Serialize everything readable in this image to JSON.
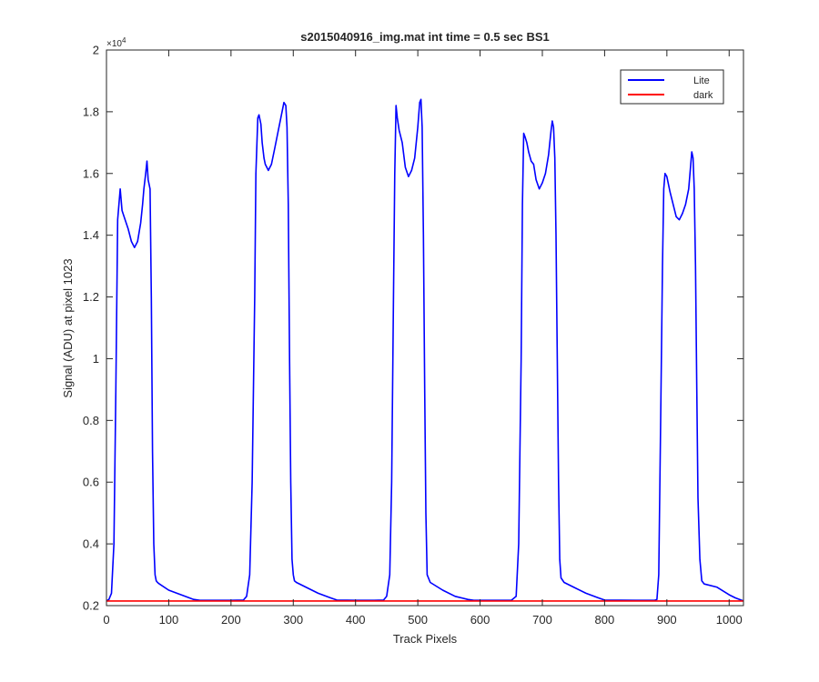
{
  "chart_data": {
    "type": "line",
    "title": "s2015040916_img.mat int time = 0.5 sec   BS1",
    "xlabel": "Track Pixels",
    "ylabel": "Signal (ADU) at pixel 1023",
    "xlim": [
      0,
      1023
    ],
    "ylim": [
      2000,
      20000
    ],
    "y_exponent_label": "×10",
    "y_exponent_power": "4",
    "grid": false,
    "legend_position": "top-right",
    "xticks": [
      0,
      100,
      200,
      300,
      400,
      500,
      600,
      700,
      800,
      900,
      1000
    ],
    "xtick_labels": [
      "0",
      "100",
      "200",
      "300",
      "400",
      "500",
      "600",
      "700",
      "800",
      "900",
      "1000"
    ],
    "yticks": [
      2000,
      4000,
      6000,
      8000,
      10000,
      12000,
      14000,
      16000,
      18000,
      20000
    ],
    "ytick_labels": [
      "0.2",
      "0.4",
      "0.6",
      "0.8",
      "1",
      "1.2",
      "1.4",
      "1.6",
      "1.8",
      "2"
    ],
    "series": [
      {
        "name": "Lite",
        "color": "#0000ff",
        "x": [
          0,
          4,
          8,
          12,
          15,
          18,
          20,
          22,
          25,
          30,
          35,
          40,
          45,
          50,
          55,
          58,
          60,
          63,
          65,
          67,
          70,
          72,
          74,
          76,
          78,
          80,
          82,
          85,
          100,
          120,
          140,
          150,
          180,
          200,
          220,
          225,
          230,
          234,
          238,
          240,
          243,
          245,
          248,
          250,
          253,
          255,
          260,
          265,
          270,
          275,
          280,
          285,
          288,
          290,
          292,
          294,
          296,
          298,
          300,
          302,
          305,
          320,
          340,
          360,
          370,
          400,
          430,
          445,
          450,
          455,
          458,
          461,
          463,
          465,
          467,
          470,
          475,
          480,
          485,
          490,
          495,
          500,
          503,
          505,
          507,
          509,
          511,
          513,
          515,
          520,
          540,
          560,
          580,
          590,
          620,
          650,
          658,
          662,
          666,
          668,
          670,
          672,
          675,
          678,
          682,
          686,
          690,
          695,
          700,
          705,
          710,
          712,
          714,
          716,
          718,
          720,
          722,
          724,
          726,
          728,
          730,
          735,
          750,
          770,
          790,
          800,
          850,
          880,
          884,
          887,
          890,
          893,
          895,
          897,
          900,
          905,
          910,
          915,
          920,
          925,
          930,
          935,
          938,
          940,
          942,
          944,
          946,
          948,
          950,
          953,
          956,
          960,
          980,
          1000,
          1010,
          1023
        ],
        "y": [
          2150,
          2200,
          2400,
          4000,
          9000,
          14500,
          15000,
          15500,
          14800,
          14500,
          14200,
          13800,
          13600,
          13800,
          14400,
          15000,
          15500,
          16000,
          16400,
          15800,
          15500,
          12000,
          7000,
          4000,
          3000,
          2800,
          2750,
          2700,
          2500,
          2350,
          2200,
          2170,
          2170,
          2170,
          2180,
          2300,
          3000,
          6000,
          12000,
          16000,
          17800,
          17900,
          17600,
          17000,
          16500,
          16300,
          16100,
          16300,
          16800,
          17300,
          17800,
          18300,
          18200,
          17500,
          15000,
          10000,
          6000,
          3500,
          3000,
          2800,
          2750,
          2600,
          2400,
          2250,
          2180,
          2170,
          2170,
          2180,
          2300,
          3000,
          6000,
          12000,
          16000,
          18200,
          17800,
          17400,
          17000,
          16200,
          15900,
          16100,
          16500,
          17500,
          18300,
          18400,
          17500,
          14000,
          9000,
          5000,
          3000,
          2750,
          2500,
          2300,
          2200,
          2170,
          2170,
          2170,
          2300,
          4000,
          10000,
          15000,
          17300,
          17200,
          17000,
          16700,
          16400,
          16300,
          15800,
          15500,
          15700,
          16000,
          16600,
          17000,
          17400,
          17700,
          17500,
          16500,
          14000,
          10000,
          6000,
          3500,
          2900,
          2750,
          2600,
          2400,
          2250,
          2180,
          2170,
          2170,
          2200,
          3000,
          8000,
          13000,
          15500,
          16000,
          15900,
          15400,
          15000,
          14600,
          14500,
          14700,
          15000,
          15500,
          16200,
          16700,
          16500,
          15500,
          13000,
          9000,
          5500,
          3500,
          2800,
          2700,
          2600,
          2350,
          2250,
          2150
        ]
      },
      {
        "name": "dark",
        "color": "#ff0000",
        "x": [
          0,
          1023
        ],
        "y": [
          2150,
          2150
        ]
      }
    ]
  }
}
